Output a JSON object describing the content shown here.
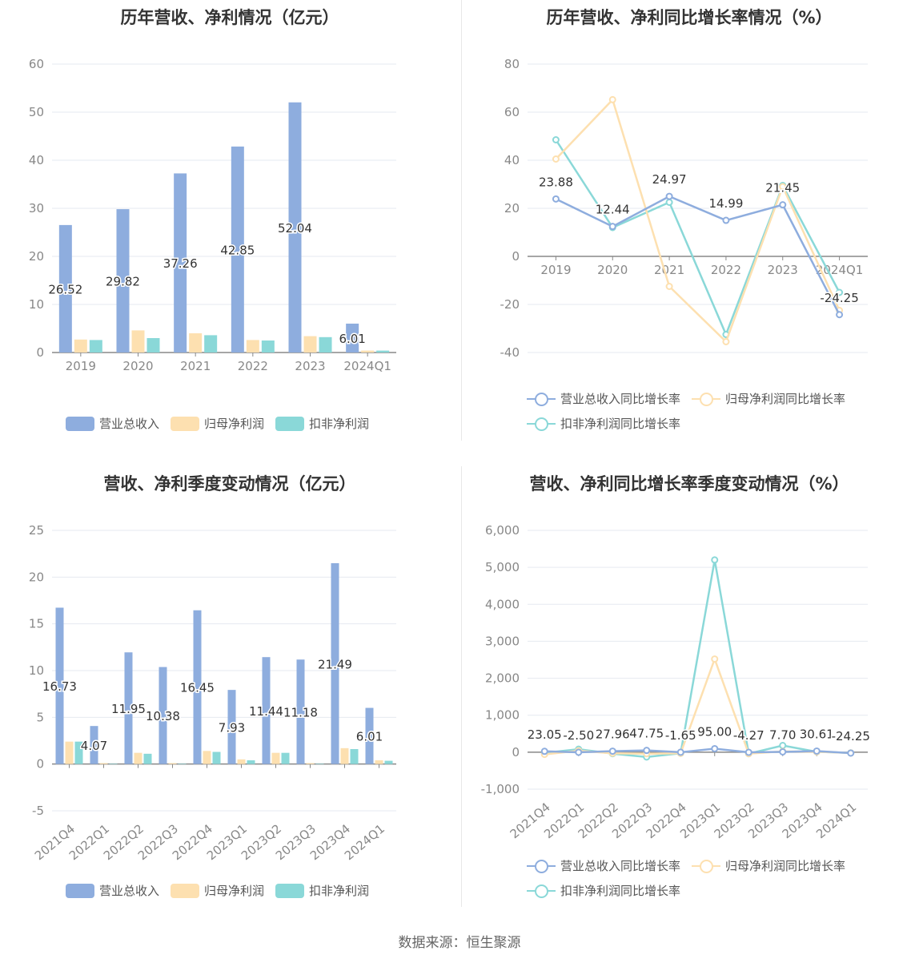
{
  "source": "数据来源：恒生聚源",
  "chart_data": [
    {
      "type": "bar",
      "title": "历年营收、净利情况（亿元）",
      "categories": [
        "2019",
        "2020",
        "2021",
        "2022",
        "2023",
        "2024Q1"
      ],
      "ylim": [
        0,
        60
      ],
      "yticks": [
        "0",
        "10",
        "20",
        "30",
        "40",
        "50",
        "60"
      ],
      "series": [
        {
          "name": "营业总收入",
          "color": "#8eadde",
          "values": [
            26.52,
            29.82,
            37.26,
            42.85,
            52.04,
            6.01
          ]
        },
        {
          "name": "归母净利润",
          "color": "#fde0b0",
          "values": [
            2.7,
            4.6,
            4.0,
            2.6,
            3.4,
            0.4
          ]
        },
        {
          "name": "扣非净利润",
          "color": "#8ad8d8",
          "values": [
            2.6,
            3.0,
            3.6,
            2.5,
            3.2,
            0.4
          ]
        }
      ],
      "labels": [
        "26.52",
        "29.82",
        "37.26",
        "42.85",
        "52.04",
        "6.01"
      ]
    },
    {
      "type": "line",
      "title": "历年营收、净利同比增长率情况（%）",
      "categories": [
        "2019",
        "2020",
        "2021",
        "2022",
        "2023",
        "2024Q1"
      ],
      "ylim": [
        -40,
        80
      ],
      "yticks": [
        "-40",
        "-20",
        "0",
        "20",
        "40",
        "60",
        "80"
      ],
      "series": [
        {
          "name": "营业总收入同比增长率",
          "color": "#8eadde",
          "values": [
            23.88,
            12.44,
            24.97,
            14.99,
            21.45,
            -24.25
          ]
        },
        {
          "name": "归母净利润同比增长率",
          "color": "#fde0b0",
          "values": [
            40.5,
            65.2,
            -12.5,
            -35.5,
            29.0,
            -22.5
          ]
        },
        {
          "name": "扣非净利润同比增长率",
          "color": "#8ad8d8",
          "values": [
            48.5,
            12.0,
            22.5,
            -32.5,
            29.5,
            -15.0
          ]
        }
      ],
      "labels": [
        "23.88",
        "12.44",
        "24.97",
        "14.99",
        "21.45",
        "-24.25"
      ]
    },
    {
      "type": "bar",
      "title": "营收、净利季度变动情况（亿元）",
      "categories": [
        "2021Q4",
        "2022Q1",
        "2022Q2",
        "2022Q3",
        "2022Q4",
        "2023Q1",
        "2023Q2",
        "2023Q3",
        "2023Q4",
        "2024Q1"
      ],
      "ylim": [
        -5,
        25
      ],
      "yticks": [
        "-5",
        "0",
        "5",
        "10",
        "15",
        "20",
        "25"
      ],
      "series": [
        {
          "name": "营业总收入",
          "color": "#8eadde",
          "values": [
            16.73,
            4.07,
            11.95,
            10.38,
            16.45,
            7.93,
            11.44,
            11.18,
            21.49,
            6.01
          ]
        },
        {
          "name": "归母净利润",
          "color": "#fde0b0",
          "values": [
            2.4,
            0.1,
            1.2,
            0.1,
            1.4,
            0.5,
            1.2,
            0.1,
            1.7,
            0.4
          ]
        },
        {
          "name": "扣非净利润",
          "color": "#8ad8d8",
          "values": [
            2.4,
            0.05,
            1.1,
            0.05,
            1.3,
            0.4,
            1.2,
            0.05,
            1.6,
            0.35
          ]
        }
      ],
      "labels": [
        "16.73",
        "4.07",
        "11.95",
        "10.38",
        "16.45",
        "7.93",
        "11.44",
        "11.18",
        "21.49",
        "6.01"
      ]
    },
    {
      "type": "line",
      "title": "营收、净利同比增长率季度变动情况（%）",
      "categories": [
        "2021Q4",
        "2022Q1",
        "2022Q2",
        "2022Q3",
        "2022Q4",
        "2023Q1",
        "2023Q2",
        "2023Q3",
        "2023Q4",
        "2024Q1"
      ],
      "ylim": [
        -1000,
        6000
      ],
      "yticks": [
        "-1,000",
        "0",
        "1,000",
        "2,000",
        "3,000",
        "4,000",
        "5,000",
        "6,000"
      ],
      "series": [
        {
          "name": "营业总收入同比增长率",
          "color": "#8eadde",
          "values": [
            23.05,
            -2.5,
            27.96,
            47.75,
            -1.65,
            95.0,
            -4.27,
            7.7,
            30.61,
            -24.25
          ]
        },
        {
          "name": "归母净利润同比增长率",
          "color": "#fde0b0",
          "values": [
            -60,
            40,
            -30,
            -40,
            -30,
            2520,
            -40,
            20,
            10,
            -20
          ]
        },
        {
          "name": "扣非净利润同比增长率",
          "color": "#8ad8d8",
          "values": [
            -20,
            80,
            -40,
            -130,
            -30,
            5200,
            -40,
            180,
            10,
            -20
          ]
        }
      ],
      "labels": [
        "23.05",
        "-2.50",
        "27.96",
        "47.75",
        "-1.65",
        "95.00",
        "-4.27",
        "7.70",
        "30.61",
        "-24.25"
      ]
    }
  ]
}
